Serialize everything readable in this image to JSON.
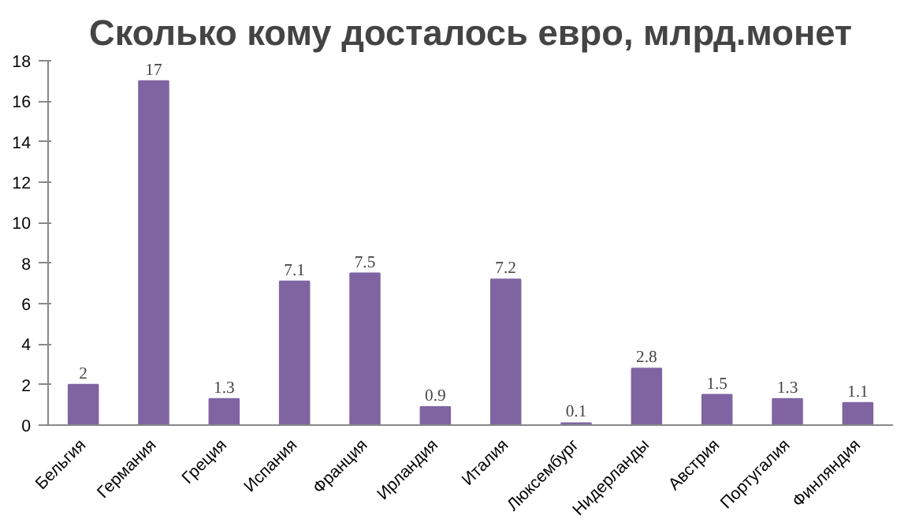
{
  "chart_data": {
    "type": "bar",
    "title": "Сколько кому досталось евро, млрд.монет",
    "categories": [
      "Бельгия",
      "Германия",
      "Греция",
      "Испания",
      "Франция",
      "Ирландия",
      "Италия",
      "Люксембург",
      "Нидерланды",
      "Австрия",
      "Португалия",
      "Финляндия"
    ],
    "values": [
      2,
      17,
      1.3,
      7.1,
      7.5,
      0.9,
      7.2,
      0.1,
      2.8,
      1.5,
      1.3,
      1.1
    ],
    "color": "#8064a2",
    "ylim": [
      0,
      18
    ],
    "yticks": [
      0,
      2,
      4,
      6,
      8,
      10,
      12,
      14,
      16,
      18
    ],
    "grid": false,
    "data_labels": true
  }
}
